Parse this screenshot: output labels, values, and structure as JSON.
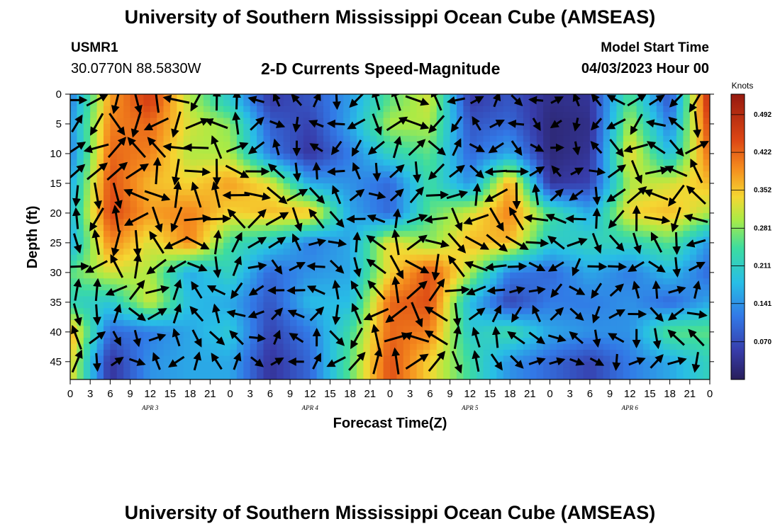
{
  "header": {
    "title": "University of Southern Mississippi Ocean Cube (AMSEAS)",
    "station_id": "USMR1",
    "station_coords": "30.0770N  88.5830W",
    "plot_title": "2-D Currents Speed-Magnitude",
    "model_start_label": "Model Start Time",
    "model_start_value": "04/03/2023 Hour 00"
  },
  "footer": {
    "title": "University of Southern Mississippi Ocean Cube (AMSEAS)"
  },
  "chart_data": {
    "type": "heatmap",
    "xlabel": "Forecast Time(Z)",
    "ylabel": "Depth (ft)",
    "x_ticks": [
      "0",
      "3",
      "6",
      "9",
      "12",
      "15",
      "18",
      "21",
      "0",
      "3",
      "6",
      "9",
      "12",
      "15",
      "18",
      "21",
      "0",
      "3",
      "6",
      "9",
      "12",
      "15",
      "18",
      "21",
      "0",
      "3",
      "6",
      "9",
      "12",
      "15",
      "18",
      "21",
      "0"
    ],
    "x_range_hours": [
      0,
      96
    ],
    "day_labels": [
      {
        "label": "APR 3",
        "hour": 12
      },
      {
        "label": "APR 4",
        "hour": 36
      },
      {
        "label": "APR 5",
        "hour": 60
      },
      {
        "label": "APR 6",
        "hour": 84
      }
    ],
    "y_ticks": [
      0,
      5,
      10,
      15,
      20,
      25,
      30,
      35,
      40,
      45
    ],
    "y_range_ft": [
      0,
      48
    ],
    "y_inverted": true,
    "colorbar": {
      "title": "Knots",
      "min": 0,
      "max": 0.53,
      "tick_values": [
        0.07,
        0.141,
        0.211,
        0.281,
        0.352,
        0.422,
        0.492
      ],
      "tick_labels": [
        "0.070",
        "0.141",
        "0.211",
        "0.281",
        "0.352",
        "0.422",
        "0.492"
      ]
    },
    "grid_hours": [
      0,
      6,
      12,
      18,
      24,
      30,
      36,
      42,
      48,
      54,
      60,
      66,
      72,
      78,
      84,
      90,
      96
    ],
    "grid_depths": [
      1,
      5,
      10,
      15,
      20,
      25,
      30,
      35,
      40,
      45
    ],
    "speed_knots": [
      [
        0.12,
        0.38,
        0.46,
        0.3,
        0.2,
        0.05,
        0.08,
        0.15,
        0.26,
        0.32,
        0.05,
        0.08,
        0.03,
        0.04,
        0.26,
        0.08,
        0.49
      ],
      [
        0.14,
        0.4,
        0.42,
        0.32,
        0.28,
        0.09,
        0.06,
        0.16,
        0.3,
        0.3,
        0.08,
        0.1,
        0.02,
        0.03,
        0.3,
        0.12,
        0.46
      ],
      [
        0.12,
        0.42,
        0.4,
        0.3,
        0.3,
        0.12,
        0.04,
        0.12,
        0.22,
        0.26,
        0.1,
        0.16,
        0.02,
        0.04,
        0.34,
        0.18,
        0.42
      ],
      [
        0.16,
        0.44,
        0.36,
        0.34,
        0.38,
        0.33,
        0.16,
        0.14,
        0.1,
        0.24,
        0.14,
        0.38,
        0.04,
        0.06,
        0.3,
        0.32,
        0.36
      ],
      [
        0.18,
        0.45,
        0.38,
        0.4,
        0.34,
        0.36,
        0.36,
        0.16,
        0.1,
        0.26,
        0.32,
        0.4,
        0.25,
        0.16,
        0.34,
        0.36,
        0.3
      ],
      [
        0.16,
        0.4,
        0.32,
        0.4,
        0.24,
        0.2,
        0.12,
        0.16,
        0.34,
        0.28,
        0.36,
        0.36,
        0.2,
        0.22,
        0.22,
        0.26,
        0.14
      ],
      [
        0.26,
        0.32,
        0.3,
        0.16,
        0.22,
        0.1,
        0.14,
        0.16,
        0.34,
        0.44,
        0.3,
        0.12,
        0.1,
        0.16,
        0.12,
        0.18,
        0.1
      ],
      [
        0.22,
        0.2,
        0.32,
        0.18,
        0.16,
        0.08,
        0.18,
        0.18,
        0.42,
        0.44,
        0.18,
        0.06,
        0.12,
        0.12,
        0.14,
        0.1,
        0.16
      ],
      [
        0.38,
        0.1,
        0.12,
        0.16,
        0.2,
        0.06,
        0.12,
        0.24,
        0.42,
        0.4,
        0.2,
        0.24,
        0.16,
        0.14,
        0.14,
        0.26,
        0.26
      ],
      [
        0.34,
        0.04,
        0.14,
        0.16,
        0.16,
        0.04,
        0.1,
        0.26,
        0.44,
        0.34,
        0.24,
        0.14,
        0.1,
        0.06,
        0.12,
        0.16,
        0.22
      ]
    ],
    "arrow_grid_hours": [
      1,
      4,
      7,
      10,
      13,
      16,
      19,
      22,
      25,
      28,
      31,
      34,
      37,
      40,
      43,
      46,
      49,
      52,
      55,
      58,
      61,
      64,
      67,
      70,
      73,
      76,
      79,
      82,
      85,
      88,
      91,
      94
    ],
    "arrow_grid_depths": [
      1,
      5,
      9,
      13,
      17,
      21,
      25,
      29,
      33,
      37,
      41,
      45
    ],
    "arrow_seed": 7
  }
}
